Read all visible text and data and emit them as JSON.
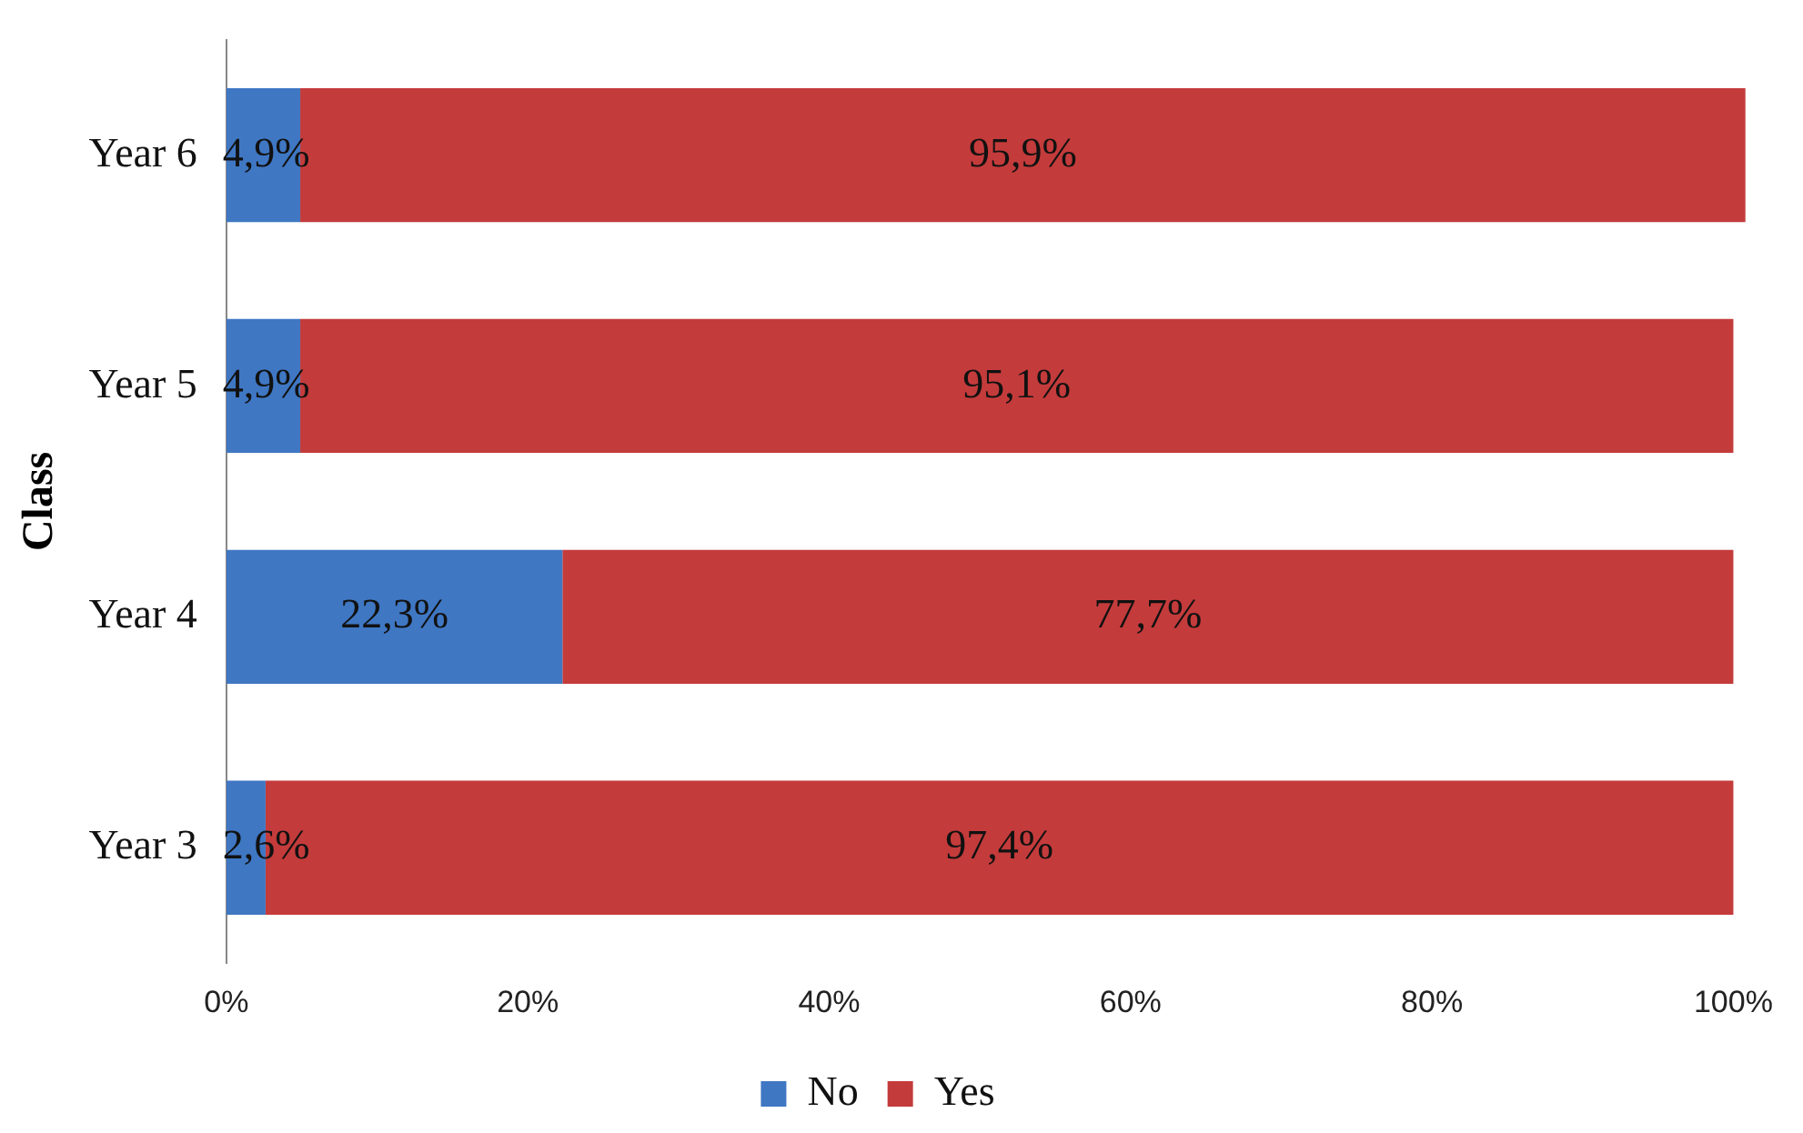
{
  "chart_data": {
    "type": "bar",
    "orientation": "horizontal",
    "stacked": true,
    "ylabel": "Class",
    "categories": [
      "Year 6",
      "Year 5",
      "Year 4",
      "Year 3"
    ],
    "series": [
      {
        "name": "No",
        "color": "#3f77c3",
        "values": [
          4.9,
          4.9,
          22.3,
          2.6
        ],
        "value_labels": [
          "4,9%",
          "4,9%",
          "22,3%",
          "2,6%"
        ]
      },
      {
        "name": "Yes",
        "color": "#c43b3b",
        "values": [
          95.9,
          95.1,
          77.7,
          97.4
        ],
        "value_labels": [
          "95,9%",
          "95,1%",
          "77,7%",
          "97,4%"
        ]
      }
    ],
    "xlim": [
      0,
      101
    ],
    "xticks": [
      {
        "value": 0,
        "label": "0%"
      },
      {
        "value": 20,
        "label": "20%"
      },
      {
        "value": 40,
        "label": "40%"
      },
      {
        "value": 60,
        "label": "60%"
      },
      {
        "value": 80,
        "label": "80%"
      },
      {
        "value": 100,
        "label": "100%"
      }
    ],
    "grid": false,
    "legend": "bottom"
  }
}
